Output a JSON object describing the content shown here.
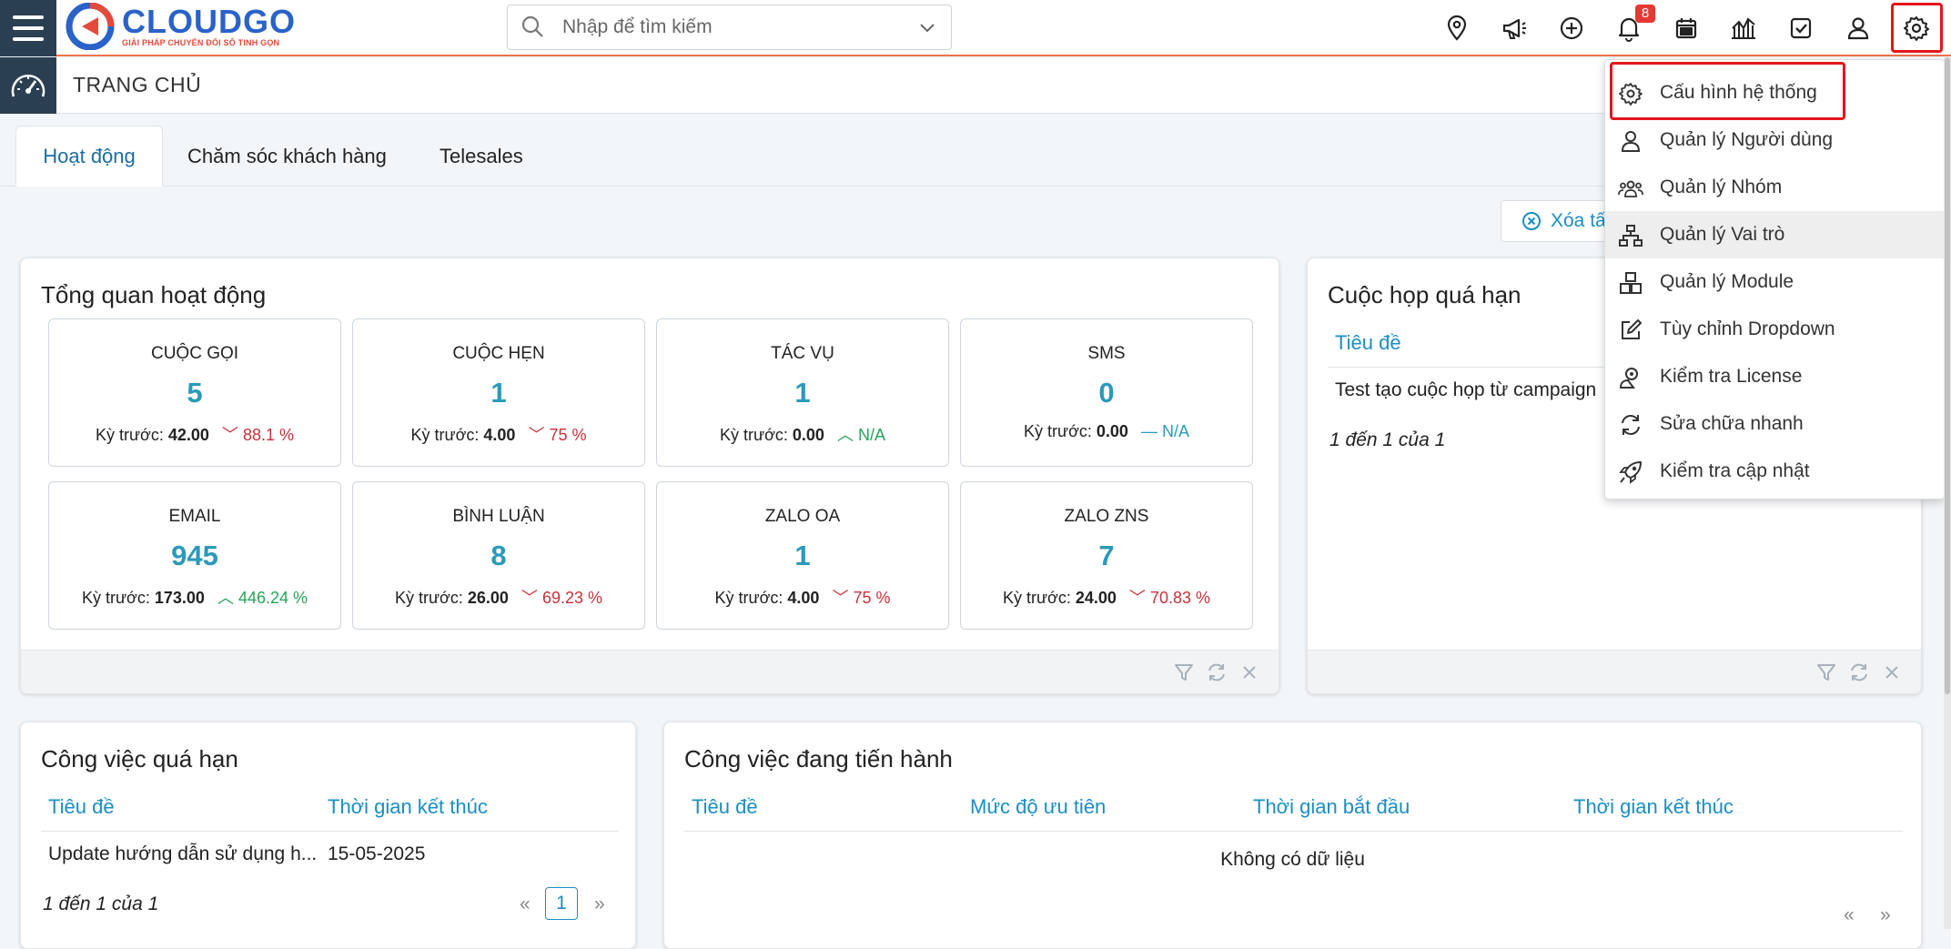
{
  "header": {
    "logo": {
      "name": "CLOUDGO",
      "tagline": "GIẢI PHÁP CHUYỂN ĐỔI SỐ TINH GỌN"
    },
    "search_placeholder": "Nhập để tìm kiếm",
    "notification_count": "8",
    "icons": [
      "location-pin-icon",
      "megaphone-icon",
      "plus-circle-icon",
      "bell-icon",
      "calendar-icon",
      "chart-icon",
      "task-check-icon",
      "user-icon",
      "gear-icon"
    ]
  },
  "page": {
    "title": "TRANG CHỦ"
  },
  "tabs": [
    {
      "label": "Hoạt động",
      "active": true
    },
    {
      "label": "Chăm sóc khách hàng",
      "active": false
    },
    {
      "label": "Telesales",
      "active": false
    }
  ],
  "clear_button": "Xóa tấ",
  "overview": {
    "title": "Tổng quan hoạt động",
    "prev_label": "Kỳ trước:",
    "stats": [
      {
        "label": "CUỘC GỌI",
        "value": "5",
        "prev": "42.00",
        "change": "88.1 %",
        "trend": "down"
      },
      {
        "label": "CUỘC HẸN",
        "value": "1",
        "prev": "4.00",
        "change": "75 %",
        "trend": "down"
      },
      {
        "label": "TÁC VỤ",
        "value": "1",
        "prev": "0.00",
        "change": "N/A",
        "trend": "up"
      },
      {
        "label": "SMS",
        "value": "0",
        "prev": "0.00",
        "change": "N/A",
        "trend": "flat"
      },
      {
        "label": "EMAIL",
        "value": "945",
        "prev": "173.00",
        "change": "446.24 %",
        "trend": "up"
      },
      {
        "label": "BÌNH LUẬN",
        "value": "8",
        "prev": "26.00",
        "change": "69.23 %",
        "trend": "down"
      },
      {
        "label": "ZALO OA",
        "value": "1",
        "prev": "4.00",
        "change": "75 %",
        "trend": "down"
      },
      {
        "label": "ZALO ZNS",
        "value": "7",
        "prev": "24.00",
        "change": "70.83 %",
        "trend": "down"
      }
    ]
  },
  "meetings": {
    "title": "Cuộc họp quá hạn",
    "col": "Tiêu đề",
    "rows": [
      "Test tạo cuộc họp từ campaign"
    ],
    "pagination": "1 đến 1 của 1"
  },
  "overdue_tasks": {
    "title": "Công việc quá hạn",
    "columns": [
      "Tiêu đề",
      "Thời gian kết thúc"
    ],
    "rows": [
      [
        "Update hướng dẫn sử dụng h...",
        "15-05-2025"
      ]
    ],
    "pagination": "1 đến 1 của 1",
    "pager": {
      "prev": "«",
      "page": "1",
      "next": "»"
    }
  },
  "in_progress": {
    "title": "Công việc đang tiến hành",
    "columns": [
      "Tiêu đề",
      "Mức độ ưu tiên",
      "Thời gian bắt đầu",
      "Thời gian kết thúc"
    ],
    "empty": "Không có dữ liệu",
    "pager": {
      "prev": "«",
      "next": "»"
    }
  },
  "settings_menu": [
    {
      "label": "Cấu hình hệ thống",
      "icon": "gear-icon"
    },
    {
      "label": "Quản lý Người dùng",
      "icon": "user-icon"
    },
    {
      "label": "Quản lý Nhóm",
      "icon": "group-icon"
    },
    {
      "label": "Quản lý Vai trò",
      "icon": "hierarchy-icon"
    },
    {
      "label": "Quản lý Module",
      "icon": "blocks-icon"
    },
    {
      "label": "Tùy chỉnh Dropdown",
      "icon": "edit-icon"
    },
    {
      "label": "Kiểm tra License",
      "icon": "license-icon"
    },
    {
      "label": "Sửa chữa nhanh",
      "icon": "refresh-icon"
    },
    {
      "label": "Kiểm tra cập nhật",
      "icon": "rocket-icon"
    }
  ],
  "colors": {
    "accent": "#2a9ab9",
    "link": "#1b8ec5",
    "sidebar": "#2b3f52",
    "highlight": "#e3161d",
    "down": "#c6323d",
    "up": "#27a35a"
  }
}
